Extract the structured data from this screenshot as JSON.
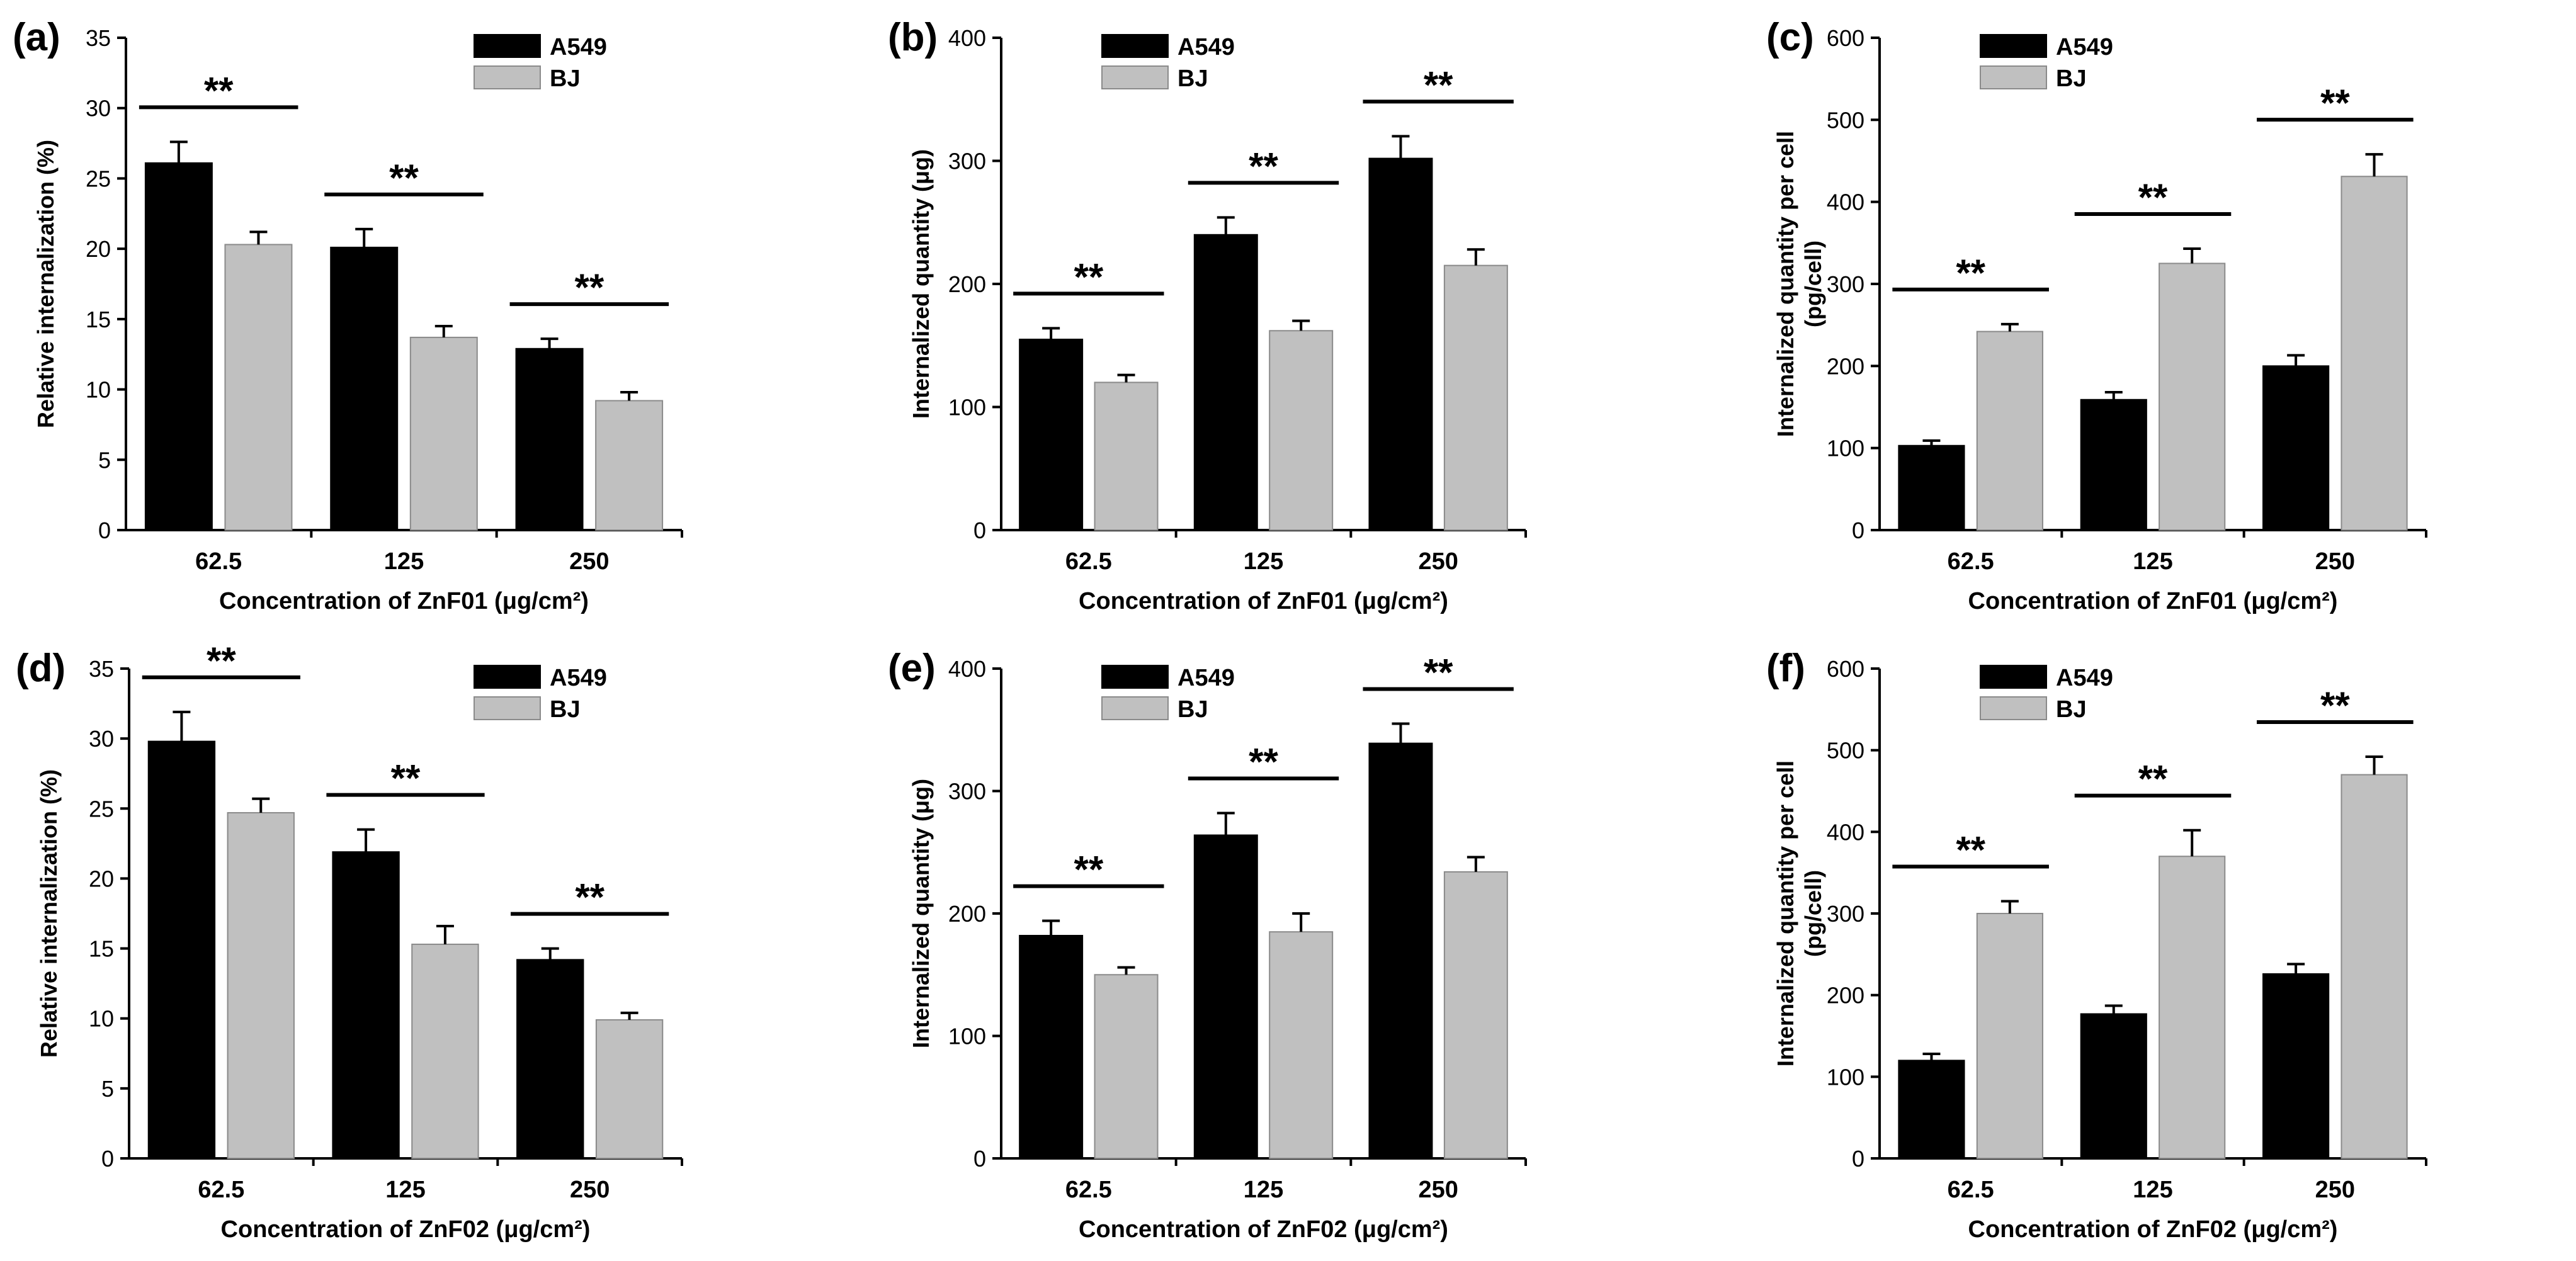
{
  "legend": {
    "series": [
      "A549",
      "BJ"
    ],
    "colors": [
      "#000000",
      "#c0c0c0"
    ]
  },
  "significance_label": "**",
  "chart_data": [
    {
      "panel": "(a)",
      "type": "bar",
      "categories": [
        "62.5",
        "125",
        "250"
      ],
      "series": [
        {
          "name": "A549",
          "values": [
            26.1,
            20.1,
            12.9
          ],
          "errors": [
            1.5,
            1.3,
            0.7
          ]
        },
        {
          "name": "BJ",
          "values": [
            20.3,
            13.7,
            9.2
          ],
          "errors": [
            0.9,
            0.8,
            0.6
          ]
        }
      ],
      "xlabel": "Concentration of ZnF01 (μg/cm²)",
      "ylabel": "Relative internalization (%)",
      "ylim": [
        0,
        35
      ],
      "yticks": [
        0,
        5,
        10,
        15,
        20,
        25,
        30,
        35
      ]
    },
    {
      "panel": "(b)",
      "type": "bar",
      "categories": [
        "62.5",
        "125",
        "250"
      ],
      "series": [
        {
          "name": "A549",
          "values": [
            155,
            240,
            302
          ],
          "errors": [
            9,
            14,
            18
          ]
        },
        {
          "name": "BJ",
          "values": [
            120,
            162,
            215
          ],
          "errors": [
            6,
            8,
            13
          ]
        }
      ],
      "xlabel": "Concentration of ZnF01 (μg/cm²)",
      "ylabel": "Internalized quantity (μg)",
      "ylim": [
        0,
        400
      ],
      "yticks": [
        0,
        100,
        200,
        300,
        400
      ]
    },
    {
      "panel": "(c)",
      "type": "bar",
      "categories": [
        "62.5",
        "125",
        "250"
      ],
      "series": [
        {
          "name": "A549",
          "values": [
            103,
            159,
            200
          ],
          "errors": [
            6,
            9,
            13
          ]
        },
        {
          "name": "BJ",
          "values": [
            242,
            325,
            431
          ],
          "errors": [
            9,
            18,
            27
          ]
        }
      ],
      "xlabel": "Concentration of ZnF01 (μg/cm²)",
      "ylabel": "Internalized quantity per cell (pg/cell)",
      "ylim": [
        0,
        600
      ],
      "yticks": [
        0,
        100,
        200,
        300,
        400,
        500,
        600
      ]
    },
    {
      "panel": "(d)",
      "type": "bar",
      "categories": [
        "62.5",
        "125",
        "250"
      ],
      "series": [
        {
          "name": "A549",
          "values": [
            29.8,
            21.9,
            14.2
          ],
          "errors": [
            2.1,
            1.6,
            0.8
          ]
        },
        {
          "name": "BJ",
          "values": [
            24.7,
            15.3,
            9.9
          ],
          "errors": [
            1.0,
            1.3,
            0.5
          ]
        }
      ],
      "xlabel": "Concentration of ZnF02 (μg/cm²)",
      "ylabel": "Relative internalization (%)",
      "ylim": [
        0,
        35
      ],
      "yticks": [
        0,
        5,
        10,
        15,
        20,
        25,
        30,
        35
      ]
    },
    {
      "panel": "(e)",
      "type": "bar",
      "categories": [
        "62.5",
        "125",
        "250"
      ],
      "series": [
        {
          "name": "A549",
          "values": [
            182,
            264,
            339
          ],
          "errors": [
            12,
            18,
            16
          ]
        },
        {
          "name": "BJ",
          "values": [
            150,
            185,
            234
          ],
          "errors": [
            6,
            15,
            12
          ]
        }
      ],
      "xlabel": "Concentration of ZnF02 (μg/cm²)",
      "ylabel": "Internalized quantity (μg)",
      "ylim": [
        0,
        400
      ],
      "yticks": [
        0,
        100,
        200,
        300,
        400
      ]
    },
    {
      "panel": "(f)",
      "type": "bar",
      "categories": [
        "62.5",
        "125",
        "250"
      ],
      "series": [
        {
          "name": "A549",
          "values": [
            120,
            177,
            226
          ],
          "errors": [
            8,
            10,
            12
          ]
        },
        {
          "name": "BJ",
          "values": [
            300,
            370,
            470
          ],
          "errors": [
            15,
            32,
            22
          ]
        }
      ],
      "xlabel": "Concentration of ZnF02 (μg/cm²)",
      "ylabel": "Internalized quantity per cell (pg/cell)",
      "ylim": [
        0,
        600
      ],
      "yticks": [
        0,
        100,
        200,
        300,
        400,
        500,
        600
      ]
    }
  ]
}
